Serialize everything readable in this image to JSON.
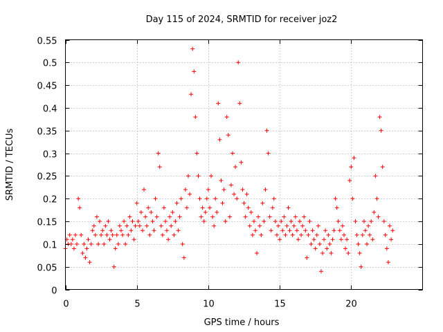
{
  "chart_data": {
    "type": "scatter",
    "title": "Day 115 of 2024, SRMTID for receiver joz2",
    "xlabel": "GPS time / hours",
    "ylabel": "SRMTID / TECUs",
    "xlim": [
      0,
      25
    ],
    "ylim": [
      0,
      0.55
    ],
    "grid": true,
    "marker": "+",
    "color": "#ff0000",
    "x_ticks": [
      0,
      5,
      10,
      15,
      20
    ],
    "x_tick_labels": [
      "0",
      "5",
      "10",
      "15",
      "20"
    ],
    "y_ticks": [
      0,
      0.05,
      0.1,
      0.15,
      0.2,
      0.25,
      0.3,
      0.35,
      0.4,
      0.45,
      0.5,
      0.55
    ],
    "y_tick_labels": [
      "0",
      "0.05",
      "0.1",
      "0.15",
      "0.2",
      "0.25",
      "0.3",
      "0.35",
      "0.4",
      "0.45",
      "0.5",
      "0.55"
    ],
    "series": [
      {
        "name": "SRMTID",
        "points": [
          [
            0.0,
            0.09
          ],
          [
            0.1,
            0.11
          ],
          [
            0.2,
            0.1
          ],
          [
            0.3,
            0.12
          ],
          [
            0.4,
            0.1
          ],
          [
            0.5,
            0.11
          ],
          [
            0.6,
            0.09
          ],
          [
            0.7,
            0.12
          ],
          [
            0.8,
            0.1
          ],
          [
            0.9,
            0.2
          ],
          [
            1.0,
            0.18
          ],
          [
            1.1,
            0.12
          ],
          [
            1.2,
            0.08
          ],
          [
            1.3,
            0.1
          ],
          [
            1.4,
            0.07
          ],
          [
            1.5,
            0.09
          ],
          [
            1.6,
            0.11
          ],
          [
            1.7,
            0.06
          ],
          [
            1.8,
            0.1
          ],
          [
            1.9,
            0.13
          ],
          [
            2.0,
            0.14
          ],
          [
            2.1,
            0.12
          ],
          [
            2.2,
            0.16
          ],
          [
            2.3,
            0.1
          ],
          [
            2.4,
            0.15
          ],
          [
            2.5,
            0.12
          ],
          [
            2.6,
            0.13
          ],
          [
            2.7,
            0.1
          ],
          [
            2.8,
            0.14
          ],
          [
            2.9,
            0.12
          ],
          [
            3.0,
            0.15
          ],
          [
            3.1,
            0.11
          ],
          [
            3.2,
            0.13
          ],
          [
            3.3,
            0.12
          ],
          [
            3.4,
            0.05
          ],
          [
            3.5,
            0.09
          ],
          [
            3.6,
            0.12
          ],
          [
            3.7,
            0.1
          ],
          [
            3.8,
            0.14
          ],
          [
            3.9,
            0.13
          ],
          [
            4.0,
            0.12
          ],
          [
            4.1,
            0.15
          ],
          [
            4.2,
            0.1
          ],
          [
            4.3,
            0.14
          ],
          [
            4.4,
            0.12
          ],
          [
            4.5,
            0.16
          ],
          [
            4.6,
            0.13
          ],
          [
            4.7,
            0.15
          ],
          [
            4.8,
            0.11
          ],
          [
            4.9,
            0.14
          ],
          [
            5.0,
            0.19
          ],
          [
            5.1,
            0.15
          ],
          [
            5.2,
            0.14
          ],
          [
            5.3,
            0.17
          ],
          [
            5.4,
            0.13
          ],
          [
            5.5,
            0.22
          ],
          [
            5.6,
            0.16
          ],
          [
            5.7,
            0.14
          ],
          [
            5.8,
            0.18
          ],
          [
            5.9,
            0.12
          ],
          [
            6.0,
            0.17
          ],
          [
            6.1,
            0.15
          ],
          [
            6.2,
            0.13
          ],
          [
            6.3,
            0.2
          ],
          [
            6.4,
            0.16
          ],
          [
            6.5,
            0.3
          ],
          [
            6.6,
            0.27
          ],
          [
            6.7,
            0.14
          ],
          [
            6.8,
            0.12
          ],
          [
            6.9,
            0.18
          ],
          [
            7.0,
            0.15
          ],
          [
            7.1,
            0.13
          ],
          [
            7.2,
            0.11
          ],
          [
            7.3,
            0.16
          ],
          [
            7.4,
            0.14
          ],
          [
            7.5,
            0.17
          ],
          [
            7.6,
            0.12
          ],
          [
            7.7,
            0.15
          ],
          [
            7.8,
            0.19
          ],
          [
            7.9,
            0.13
          ],
          [
            8.0,
            0.16
          ],
          [
            8.1,
            0.2
          ],
          [
            8.2,
            0.1
          ],
          [
            8.3,
            0.07
          ],
          [
            8.4,
            0.22
          ],
          [
            8.5,
            0.18
          ],
          [
            8.6,
            0.25
          ],
          [
            8.7,
            0.21
          ],
          [
            8.8,
            0.43
          ],
          [
            8.9,
            0.53
          ],
          [
            9.0,
            0.48
          ],
          [
            9.1,
            0.38
          ],
          [
            9.2,
            0.3
          ],
          [
            9.3,
            0.25
          ],
          [
            9.4,
            0.2
          ],
          [
            9.5,
            0.16
          ],
          [
            9.6,
            0.18
          ],
          [
            9.7,
            0.15
          ],
          [
            9.8,
            0.17
          ],
          [
            9.9,
            0.2
          ],
          [
            10.0,
            0.22
          ],
          [
            10.1,
            0.18
          ],
          [
            10.2,
            0.25
          ],
          [
            10.3,
            0.16
          ],
          [
            10.4,
            0.14
          ],
          [
            10.5,
            0.2
          ],
          [
            10.6,
            0.17
          ],
          [
            10.7,
            0.41
          ],
          [
            10.8,
            0.33
          ],
          [
            10.9,
            0.24
          ],
          [
            11.0,
            0.19
          ],
          [
            11.1,
            0.22
          ],
          [
            11.2,
            0.15
          ],
          [
            11.3,
            0.38
          ],
          [
            11.4,
            0.34
          ],
          [
            11.5,
            0.16
          ],
          [
            11.6,
            0.23
          ],
          [
            11.7,
            0.3
          ],
          [
            11.8,
            0.21
          ],
          [
            11.9,
            0.27
          ],
          [
            12.0,
            0.2
          ],
          [
            12.1,
            0.5
          ],
          [
            12.2,
            0.41
          ],
          [
            12.3,
            0.28
          ],
          [
            12.4,
            0.22
          ],
          [
            12.5,
            0.19
          ],
          [
            12.6,
            0.16
          ],
          [
            12.7,
            0.21
          ],
          [
            12.8,
            0.18
          ],
          [
            12.9,
            0.14
          ],
          [
            13.0,
            0.17
          ],
          [
            13.1,
            0.12
          ],
          [
            13.2,
            0.15
          ],
          [
            13.3,
            0.13
          ],
          [
            13.4,
            0.08
          ],
          [
            13.5,
            0.16
          ],
          [
            13.6,
            0.14
          ],
          [
            13.7,
            0.12
          ],
          [
            13.8,
            0.19
          ],
          [
            13.9,
            0.15
          ],
          [
            14.0,
            0.22
          ],
          [
            14.1,
            0.35
          ],
          [
            14.2,
            0.3
          ],
          [
            14.3,
            0.16
          ],
          [
            14.4,
            0.13
          ],
          [
            14.5,
            0.18
          ],
          [
            14.6,
            0.2
          ],
          [
            14.7,
            0.15
          ],
          [
            14.8,
            0.12
          ],
          [
            14.9,
            0.14
          ],
          [
            15.0,
            0.11
          ],
          [
            15.1,
            0.15
          ],
          [
            15.2,
            0.13
          ],
          [
            15.3,
            0.16
          ],
          [
            15.4,
            0.12
          ],
          [
            15.5,
            0.14
          ],
          [
            15.6,
            0.18
          ],
          [
            15.7,
            0.13
          ],
          [
            15.8,
            0.15
          ],
          [
            15.9,
            0.12
          ],
          [
            16.0,
            0.14
          ],
          [
            16.1,
            0.16
          ],
          [
            16.2,
            0.13
          ],
          [
            16.3,
            0.11
          ],
          [
            16.4,
            0.15
          ],
          [
            16.5,
            0.12
          ],
          [
            16.6,
            0.14
          ],
          [
            16.7,
            0.16
          ],
          [
            16.8,
            0.13
          ],
          [
            16.9,
            0.07
          ],
          [
            17.0,
            0.12
          ],
          [
            17.1,
            0.15
          ],
          [
            17.2,
            0.1
          ],
          [
            17.3,
            0.13
          ],
          [
            17.4,
            0.11
          ],
          [
            17.5,
            0.09
          ],
          [
            17.6,
            0.12
          ],
          [
            17.7,
            0.14
          ],
          [
            17.8,
            0.1
          ],
          [
            17.9,
            0.04
          ],
          [
            18.0,
            0.08
          ],
          [
            18.1,
            0.11
          ],
          [
            18.2,
            0.13
          ],
          [
            18.3,
            0.09
          ],
          [
            18.4,
            0.12
          ],
          [
            18.5,
            0.1
          ],
          [
            18.6,
            0.08
          ],
          [
            18.7,
            0.11
          ],
          [
            18.8,
            0.13
          ],
          [
            18.9,
            0.2
          ],
          [
            19.0,
            0.18
          ],
          [
            19.1,
            0.15
          ],
          [
            19.2,
            0.13
          ],
          [
            19.3,
            0.11
          ],
          [
            19.4,
            0.14
          ],
          [
            19.5,
            0.12
          ],
          [
            19.6,
            0.09
          ],
          [
            19.7,
            0.11
          ],
          [
            19.8,
            0.08
          ],
          [
            19.9,
            0.24
          ],
          [
            20.0,
            0.27
          ],
          [
            20.1,
            0.2
          ],
          [
            20.2,
            0.29
          ],
          [
            20.3,
            0.15
          ],
          [
            20.4,
            0.12
          ],
          [
            20.5,
            0.1
          ],
          [
            20.6,
            0.08
          ],
          [
            20.7,
            0.05
          ],
          [
            20.8,
            0.12
          ],
          [
            20.9,
            0.15
          ],
          [
            21.0,
            0.13
          ],
          [
            21.1,
            0.1
          ],
          [
            21.2,
            0.14
          ],
          [
            21.3,
            0.12
          ],
          [
            21.4,
            0.15
          ],
          [
            21.5,
            0.11
          ],
          [
            21.6,
            0.17
          ],
          [
            21.7,
            0.25
          ],
          [
            21.8,
            0.2
          ],
          [
            21.9,
            0.16
          ],
          [
            22.0,
            0.38
          ],
          [
            22.1,
            0.35
          ],
          [
            22.2,
            0.27
          ],
          [
            22.3,
            0.15
          ],
          [
            22.4,
            0.12
          ],
          [
            22.5,
            0.09
          ],
          [
            22.6,
            0.06
          ],
          [
            22.7,
            0.14
          ],
          [
            22.8,
            0.11
          ],
          [
            22.9,
            0.13
          ]
        ]
      }
    ]
  }
}
